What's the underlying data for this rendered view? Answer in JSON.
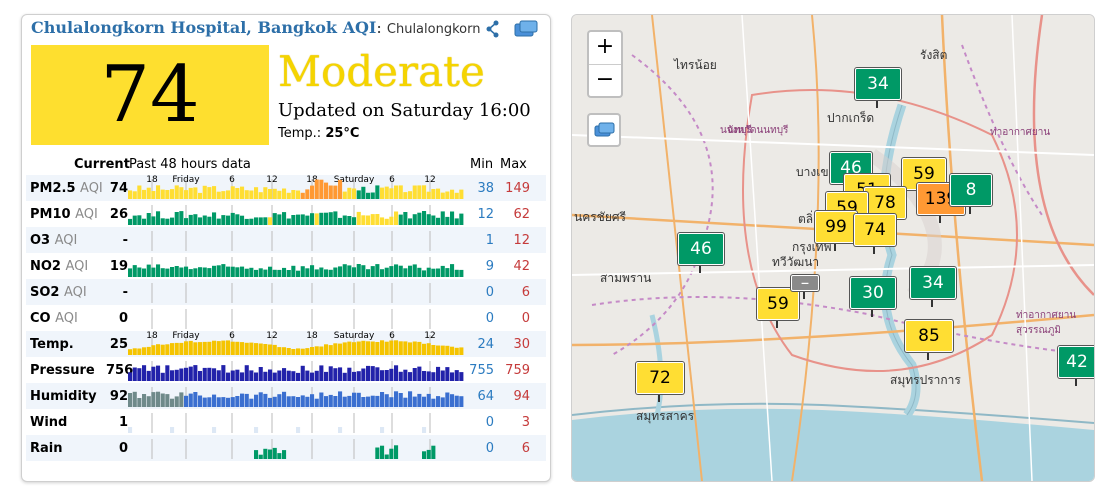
{
  "station": {
    "title": "Chulalongkorn Hospital, Bangkok AQI",
    "separator": ":",
    "subtitle": "Chulalongkorn",
    "aqi": "74",
    "level": "Moderate",
    "updated": "Updated on Saturday 16:00",
    "temp_label": "Temp.:",
    "temp_value": "25°C",
    "aqi_color": "#fedf2f"
  },
  "table": {
    "header_current": "Current",
    "header_past": "Past 48 hours data",
    "header_min": "Min",
    "header_max": "Max",
    "axis_top": [
      "18",
      "Friday",
      "6",
      "12",
      "18",
      "Saturday",
      "6",
      "12"
    ],
    "rows": [
      {
        "name": "PM2.5",
        "unit": "AQI",
        "current": "74",
        "min": "38",
        "max": "149"
      },
      {
        "name": "PM10",
        "unit": "AQI",
        "current": "26",
        "min": "12",
        "max": "62"
      },
      {
        "name": "O3",
        "unit": "AQI",
        "current": "-",
        "min": "1",
        "max": "12"
      },
      {
        "name": "NO2",
        "unit": "AQI",
        "current": "19",
        "min": "9",
        "max": "42"
      },
      {
        "name": "SO2",
        "unit": "AQI",
        "current": "-",
        "min": "0",
        "max": "6"
      },
      {
        "name": "CO",
        "unit": "AQI",
        "current": "0",
        "min": "0",
        "max": "0"
      },
      {
        "name": "Temp.",
        "unit": "",
        "current": "25",
        "min": "24",
        "max": "30"
      },
      {
        "name": "Pressure",
        "unit": "",
        "current": "756",
        "min": "755",
        "max": "759"
      },
      {
        "name": "Humidity",
        "unit": "",
        "current": "92",
        "min": "64",
        "max": "94"
      },
      {
        "name": "Wind",
        "unit": "",
        "current": "1",
        "min": "0",
        "max": "3"
      },
      {
        "name": "Rain",
        "unit": "",
        "current": "0",
        "min": "0",
        "max": "6"
      }
    ]
  },
  "map": {
    "zoom_in": "+",
    "zoom_out": "−",
    "markers": [
      {
        "value": "34",
        "color": "green"
      },
      {
        "value": "46",
        "color": "green"
      },
      {
        "value": "59",
        "color": "yellow"
      },
      {
        "value": "51",
        "color": "yellow"
      },
      {
        "value": "78",
        "color": "yellow"
      },
      {
        "value": "139",
        "color": "orange"
      },
      {
        "value": "8",
        "color": "green"
      },
      {
        "value": "59",
        "color": "yellow"
      },
      {
        "value": "99",
        "color": "yellow"
      },
      {
        "value": "74",
        "color": "yellow"
      },
      {
        "value": "46",
        "color": "green"
      },
      {
        "value": "59",
        "color": "yellow"
      },
      {
        "value": "30",
        "color": "green"
      },
      {
        "value": "34",
        "color": "green"
      },
      {
        "value": "85",
        "color": "yellow"
      },
      {
        "value": "72",
        "color": "yellow"
      },
      {
        "value": "42",
        "color": "green"
      },
      {
        "value": "–",
        "color": "gray"
      }
    ],
    "places": [
      "ไทรน้อย",
      "รังสิต",
      "ปากเกร็ด",
      "นนทบุรี",
      "ตลิ่งชัน",
      "กรุงเทพ",
      "ทวีวัฒนา",
      "สามพราน",
      "บางเขน",
      "สมุทรปราการ",
      "สมุทรสาคร",
      "นครชัยศรี",
      "จังหวัดนนทบุรี",
      "ท่าอากาศยาน",
      "ท่าอากาศยาน สุวรรณภูมิ"
    ]
  }
}
